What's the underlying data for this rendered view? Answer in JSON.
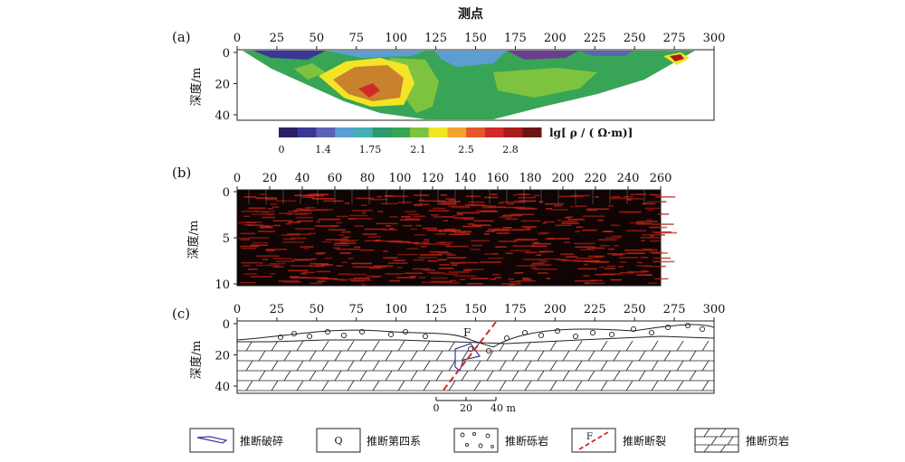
{
  "title": "测点",
  "panels": {
    "a": {
      "label": "(a)",
      "x_ticks": [
        "0",
        "25",
        "50",
        "75",
        "100",
        "125",
        "150",
        "175",
        "200",
        "225",
        "250",
        "275",
        "300"
      ],
      "y_ticks": [
        "0",
        "20",
        "40"
      ],
      "ylabel": "深度/m",
      "colorbar": {
        "title": "lg[ ρ / ( Ω·m)]",
        "tick_labels": [
          "0",
          "1.4",
          "1.75",
          "2.1",
          "2.5",
          "2.8"
        ],
        "colors": [
          "#2b1f63",
          "#3a3796",
          "#5d63b4",
          "#5b9fd2",
          "#46aeb5",
          "#2d9a6e",
          "#38a456",
          "#7ec33f",
          "#f3e526",
          "#f0a32f",
          "#e4572e",
          "#d12a2a",
          "#a81c1c",
          "#6e1414"
        ]
      }
    },
    "b": {
      "label": "(b)",
      "x_ticks": [
        "0",
        "20",
        "40",
        "60",
        "80",
        "100",
        "120",
        "140",
        "160",
        "180",
        "200",
        "220",
        "240",
        "260"
      ],
      "y_ticks": [
        "0",
        "5",
        "10"
      ],
      "ylabel": "深度/m"
    },
    "c": {
      "label": "(c)",
      "x_ticks": [
        "0",
        "25",
        "50",
        "75",
        "100",
        "125",
        "150",
        "175",
        "200",
        "225",
        "250",
        "275",
        "300"
      ],
      "y_ticks": [
        "0",
        "20",
        "40"
      ],
      "ylabel": "深度/m",
      "fault_label": "F",
      "scale_bar": [
        "0",
        "20",
        "40 m"
      ]
    }
  },
  "legend": [
    {
      "symbol": "broken-rock-symbol",
      "label": "推断破碎"
    },
    {
      "symbol": "Q",
      "label": "推断第四系"
    },
    {
      "symbol": "conglomerate-symbol",
      "label": "推断砾岩"
    },
    {
      "symbol": "F",
      "label": "推断断裂"
    },
    {
      "symbol": "shale-symbol",
      "label": "推断页岩"
    }
  ]
}
